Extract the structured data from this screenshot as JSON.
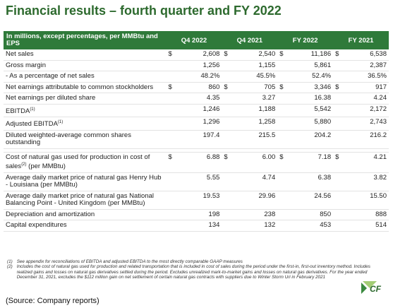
{
  "header": {
    "title": "Financial results – fourth quarter and FY 2022"
  },
  "table": {
    "columns": [
      "In millions, except percentages, per MMBtu and EPS",
      "Q4 2022",
      "Q4 2021",
      "FY 2022",
      "FY 2021"
    ],
    "sections": [
      [
        {
          "label": "Net sales",
          "cells": [
            {
              "prefix": "$",
              "value": "2,608"
            },
            {
              "prefix": "$",
              "value": "2,540"
            },
            {
              "prefix": "$",
              "value": "11,186"
            },
            {
              "prefix": "$",
              "value": "6,538"
            }
          ]
        },
        {
          "label": "Gross margin",
          "cells": [
            "1,256",
            "1,155",
            "5,861",
            "2,387"
          ]
        },
        {
          "label": "- As a percentage of net sales",
          "cells": [
            "48.2%",
            "45.5%",
            "52.4%",
            "36.5%"
          ]
        },
        {
          "label": "Net earnings attributable to common stockholders",
          "cells": [
            {
              "prefix": "$",
              "value": "860"
            },
            {
              "prefix": "$",
              "value": "705"
            },
            {
              "prefix": "$",
              "value": "3,346"
            },
            {
              "prefix": "$",
              "value": "917"
            }
          ]
        },
        {
          "label": "Net earnings per diluted share",
          "cells": [
            "4.35",
            "3.27",
            "16.38",
            "4.24"
          ]
        },
        {
          "label": "EBITDA",
          "sup": "(1)",
          "cells": [
            "1,246",
            "1,188",
            "5,542",
            "2,172"
          ]
        },
        {
          "label": "Adjusted EBITDA",
          "sup": "(1)",
          "cells": [
            "1,296",
            "1,258",
            "5,880",
            "2,743"
          ]
        },
        {
          "label": "Diluted weighted-average common shares outstanding",
          "cells": [
            "197.4",
            "215.5",
            "204.2",
            "216.2"
          ]
        }
      ],
      [
        {
          "label": "Cost of natural gas used for production in cost of sales",
          "sup": "(2)",
          "label_after": " (per MMBtu)",
          "cells": [
            {
              "prefix": "$",
              "value": "6.88"
            },
            {
              "prefix": "$",
              "value": "6.00"
            },
            {
              "prefix": "$",
              "value": "7.18"
            },
            {
              "prefix": "$",
              "value": "4.21"
            }
          ]
        },
        {
          "label": "Average daily market price of natural gas Henry Hub - Louisiana (per MMBtu)",
          "cells": [
            "5.55",
            "4.74",
            "6.38",
            "3.82"
          ]
        },
        {
          "label": "Average daily market price of natural gas National Balancing Point - United Kingdom (per MMBtu)",
          "cells": [
            "19.53",
            "29.96",
            "24.56",
            "15.50"
          ]
        },
        {
          "label": "Depreciation and amortization",
          "cells": [
            "198",
            "238",
            "850",
            "888"
          ]
        },
        {
          "label": "Capital expenditures",
          "cells": [
            "134",
            "132",
            "453",
            "514"
          ]
        }
      ]
    ]
  },
  "footnotes": [
    {
      "marker": "(1)",
      "text": "See appendix for reconciliations of EBITDA and adjusted EBITDA to the most directly comparable GAAP measures"
    },
    {
      "marker": "(2)",
      "text": "Includes the cost of natural gas used for production and related transportation that is included in cost of sales during the period under the first-in, first-out inventory method. Includes realized gains and losses on natural gas derivatives settled during the period. Excludes unrealized mark-to-market gains and losses on natural gas derivatives. For the year ended December 31, 2021, excludes the $112 million gain on net settlement of certain natural gas contracts with suppliers due to Winter Storm Uri in February 2021"
    }
  ],
  "logo": "CF",
  "source": "(Source: Company reports)"
}
